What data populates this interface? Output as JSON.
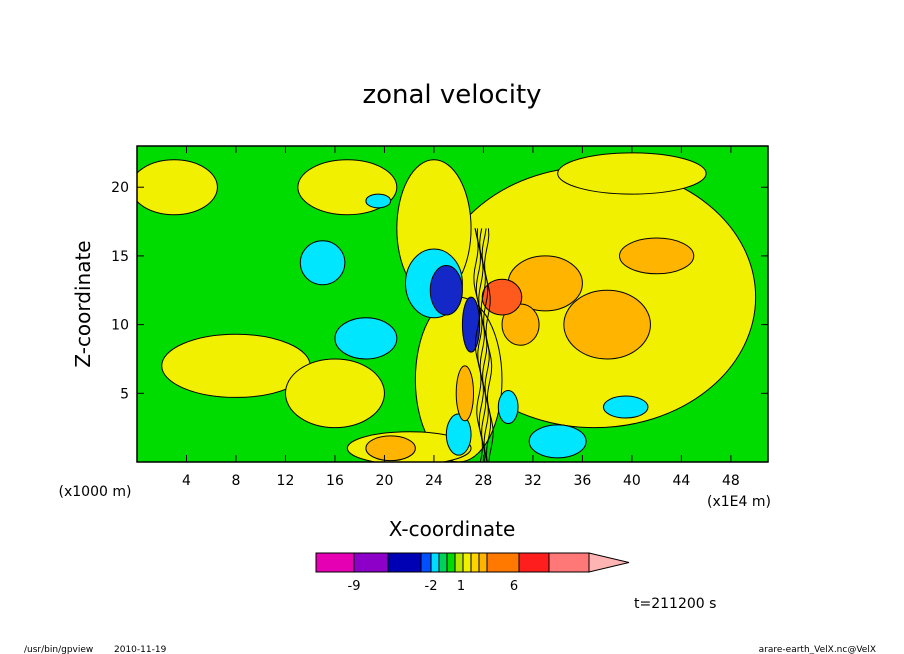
{
  "chart_data": {
    "type": "heatmap",
    "title": "zonal velocity",
    "xlabel": "X-coordinate",
    "ylabel": "Z-coordinate",
    "x_unit_label": "(x1E4 m)",
    "y_unit_label": "(x1000 m)",
    "xlim": [
      0,
      51
    ],
    "ylim": [
      0,
      23
    ],
    "x_ticks": [
      4,
      8,
      12,
      16,
      20,
      24,
      28,
      32,
      36,
      40,
      44,
      48
    ],
    "y_ticks": [
      5,
      10,
      15,
      20
    ],
    "time_label": "t=211200 s",
    "colorbar": {
      "tick_labels": [
        "-9",
        "-2",
        "1",
        "6"
      ],
      "colors": [
        "#e600b4",
        "#8c00c8",
        "#0000b4",
        "#0050ff",
        "#00dcff",
        "#00d25a",
        "#00dc00",
        "#b4e600",
        "#f0f000",
        "#ffd200",
        "#ffb400",
        "#ff7800",
        "#ff1e1e",
        "#ff7878",
        "#ffb4b4"
      ]
    },
    "field_colors": {
      "neg_strong": "#1428c8",
      "neg": "#00e6ff",
      "zero": "#00dc00",
      "pos": "#f0f000",
      "pos_mid": "#ffb400",
      "pos_strong": "#ff5a1e"
    },
    "regions": [
      {
        "kind": "pos",
        "cx": 8,
        "cy": 7,
        "rx": 6,
        "ry": 2.3
      },
      {
        "kind": "pos",
        "cx": 3,
        "cy": 20,
        "rx": 3.5,
        "ry": 2
      },
      {
        "kind": "pos",
        "cx": 17,
        "cy": 20,
        "rx": 4,
        "ry": 2
      },
      {
        "kind": "pos",
        "cx": 16,
        "cy": 5,
        "rx": 4,
        "ry": 2.5
      },
      {
        "kind": "pos",
        "cx": 37,
        "cy": 12,
        "rx": 13,
        "ry": 9.5
      },
      {
        "kind": "pos",
        "cx": 26,
        "cy": 6,
        "rx": 3.5,
        "ry": 6
      },
      {
        "kind": "pos",
        "cx": 24,
        "cy": 17,
        "rx": 3,
        "ry": 5
      },
      {
        "kind": "pos",
        "cx": 40,
        "cy": 21,
        "rx": 6,
        "ry": 1.5
      },
      {
        "kind": "pos",
        "cx": 22,
        "cy": 1,
        "rx": 5,
        "ry": 1.2
      },
      {
        "kind": "pos_mid",
        "cx": 33,
        "cy": 13,
        "rx": 3,
        "ry": 2
      },
      {
        "kind": "pos_mid",
        "cx": 38,
        "cy": 10,
        "rx": 3.5,
        "ry": 2.5
      },
      {
        "kind": "pos_mid",
        "cx": 42,
        "cy": 15,
        "rx": 3,
        "ry": 1.3
      },
      {
        "kind": "pos_mid",
        "cx": 31,
        "cy": 10,
        "rx": 1.5,
        "ry": 1.5
      },
      {
        "kind": "pos_mid",
        "cx": 20.5,
        "cy": 1,
        "rx": 2,
        "ry": 0.9
      },
      {
        "kind": "pos_mid",
        "cx": 26.5,
        "cy": 5,
        "rx": 0.7,
        "ry": 2
      },
      {
        "kind": "pos_strong",
        "cx": 29.5,
        "cy": 12,
        "rx": 1.6,
        "ry": 1.3
      },
      {
        "kind": "neg",
        "cx": 18.5,
        "cy": 9,
        "rx": 2.5,
        "ry": 1.5
      },
      {
        "kind": "neg",
        "cx": 15,
        "cy": 14.5,
        "rx": 1.8,
        "ry": 1.6
      },
      {
        "kind": "neg",
        "cx": 24,
        "cy": 13,
        "rx": 2.3,
        "ry": 2.5
      },
      {
        "kind": "neg",
        "cx": 34,
        "cy": 1.5,
        "rx": 2.3,
        "ry": 1.2
      },
      {
        "kind": "neg",
        "cx": 39.5,
        "cy": 4,
        "rx": 1.8,
        "ry": 0.8
      },
      {
        "kind": "neg",
        "cx": 19.5,
        "cy": 19,
        "rx": 1,
        "ry": 0.5
      },
      {
        "kind": "neg",
        "cx": 26,
        "cy": 2,
        "rx": 1,
        "ry": 1.5
      },
      {
        "kind": "neg",
        "cx": 30,
        "cy": 4,
        "rx": 0.8,
        "ry": 1.2
      },
      {
        "kind": "neg_strong",
        "cx": 25,
        "cy": 12.5,
        "rx": 1.3,
        "ry": 1.8
      },
      {
        "kind": "neg_strong",
        "cx": 27,
        "cy": 10,
        "rx": 0.7,
        "ry": 2
      }
    ]
  },
  "footer": {
    "program": "/usr/bin/gpview",
    "date": "2010-11-19",
    "source": "arare-earth_VelX.nc@VelX"
  }
}
